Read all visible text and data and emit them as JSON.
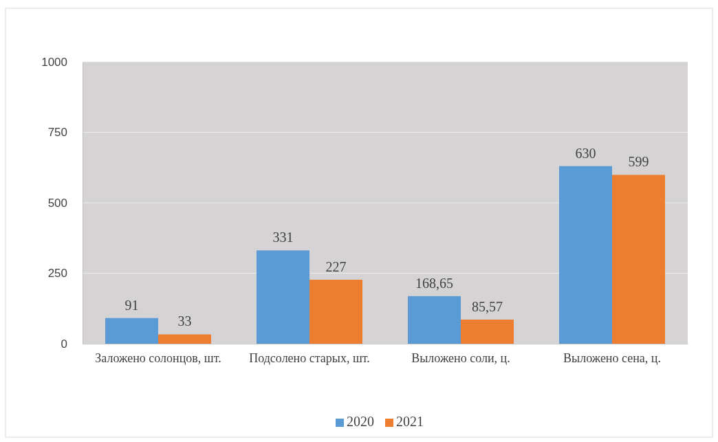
{
  "chart_data": {
    "type": "bar",
    "categories": [
      "Заложено солонцов, шт.",
      "Подсолено старых, шт.",
      "Выложено соли, ц.",
      "Выложено сена, ц."
    ],
    "series": [
      {
        "name": "2020",
        "color": "#5b9bd5",
        "values": [
          91,
          331,
          168.65,
          630
        ],
        "value_labels": [
          "91",
          "331",
          "168,65",
          "630"
        ]
      },
      {
        "name": "2021",
        "color": "#ed7d31",
        "values": [
          33,
          227,
          85.57,
          599
        ],
        "value_labels": [
          "33",
          "227",
          "85,57",
          "599"
        ]
      }
    ],
    "ylim": [
      0,
      1000
    ],
    "yticks": [
      0,
      250,
      500,
      750,
      1000
    ],
    "grid": "y",
    "legend": "bottom"
  }
}
